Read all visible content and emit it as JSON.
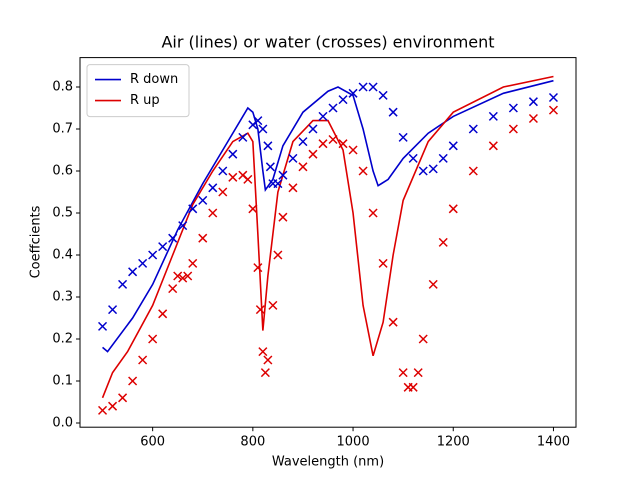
{
  "chart_data": {
    "type": "line",
    "title": "Air (lines) or water (crosses) environment",
    "x_label": "Wavelength (nm)",
    "y_label": "Coeffcients",
    "xlim": [
      455,
      1445
    ],
    "ylim": [
      -0.01,
      0.87
    ],
    "xticks": [
      600,
      800,
      1000,
      1200,
      1400
    ],
    "yticks": [
      {
        "value": 0,
        "label": "0.0"
      },
      0.1,
      0.2,
      0.3,
      0.4,
      0.5,
      0.6,
      0.7,
      0.8
    ],
    "legend": "upper left",
    "series": [
      {
        "name": "R down",
        "color": "#0000cc",
        "marker": "none",
        "x": [
          500,
          510,
          560,
          600,
          650,
          700,
          750,
          790,
          800,
          810,
          820,
          825,
          840,
          860,
          900,
          950,
          970,
          1000,
          1020,
          1040,
          1050,
          1070,
          1100,
          1150,
          1200,
          1300,
          1400
        ],
        "values": [
          0.18,
          0.17,
          0.25,
          0.33,
          0.46,
          0.57,
          0.67,
          0.75,
          0.74,
          0.7,
          0.6,
          0.555,
          0.58,
          0.66,
          0.74,
          0.79,
          0.8,
          0.78,
          0.7,
          0.6,
          0.565,
          0.58,
          0.63,
          0.69,
          0.73,
          0.785,
          0.815
        ]
      },
      {
        "name": "R up",
        "color": "#dd0000",
        "marker": "none",
        "x": [
          500,
          520,
          550,
          600,
          640,
          680,
          720,
          760,
          790,
          800,
          810,
          820,
          830,
          850,
          880,
          920,
          950,
          980,
          1000,
          1020,
          1040,
          1060,
          1080,
          1100,
          1150,
          1200,
          1300,
          1400
        ],
        "values": [
          0.06,
          0.12,
          0.17,
          0.28,
          0.4,
          0.52,
          0.6,
          0.67,
          0.69,
          0.67,
          0.45,
          0.22,
          0.35,
          0.55,
          0.67,
          0.72,
          0.72,
          0.65,
          0.5,
          0.28,
          0.16,
          0.24,
          0.4,
          0.53,
          0.67,
          0.74,
          0.8,
          0.825
        ]
      },
      {
        "color": "#0000cc",
        "marker": "x",
        "x": [
          500,
          520,
          540,
          560,
          580,
          600,
          620,
          640,
          660,
          680,
          700,
          720,
          740,
          760,
          780,
          800,
          810,
          820,
          830,
          835,
          840,
          850,
          860,
          880,
          900,
          920,
          940,
          960,
          980,
          1000,
          1020,
          1040,
          1060,
          1080,
          1100,
          1120,
          1140,
          1160,
          1180,
          1200,
          1240,
          1280,
          1320,
          1360,
          1400
        ],
        "values": [
          0.23,
          0.27,
          0.33,
          0.36,
          0.38,
          0.4,
          0.42,
          0.44,
          0.47,
          0.51,
          0.53,
          0.56,
          0.6,
          0.64,
          0.68,
          0.71,
          0.72,
          0.7,
          0.66,
          0.61,
          0.57,
          0.57,
          0.59,
          0.63,
          0.67,
          0.7,
          0.73,
          0.75,
          0.77,
          0.785,
          0.8,
          0.8,
          0.78,
          0.74,
          0.68,
          0.63,
          0.6,
          0.605,
          0.63,
          0.66,
          0.7,
          0.73,
          0.75,
          0.765,
          0.775
        ]
      },
      {
        "color": "#dd0000",
        "marker": "x",
        "x": [
          500,
          520,
          540,
          560,
          580,
          600,
          620,
          640,
          650,
          660,
          670,
          680,
          700,
          720,
          740,
          760,
          780,
          790,
          800,
          810,
          815,
          820,
          825,
          830,
          840,
          850,
          860,
          880,
          900,
          920,
          940,
          960,
          980,
          1000,
          1020,
          1040,
          1060,
          1080,
          1100,
          1110,
          1120,
          1130,
          1140,
          1160,
          1180,
          1200,
          1240,
          1280,
          1320,
          1360,
          1400
        ],
        "values": [
          0.03,
          0.04,
          0.06,
          0.1,
          0.15,
          0.2,
          0.26,
          0.32,
          0.35,
          0.345,
          0.35,
          0.38,
          0.44,
          0.5,
          0.55,
          0.585,
          0.59,
          0.58,
          0.51,
          0.37,
          0.27,
          0.17,
          0.12,
          0.15,
          0.28,
          0.4,
          0.49,
          0.56,
          0.61,
          0.64,
          0.665,
          0.675,
          0.665,
          0.65,
          0.6,
          0.5,
          0.38,
          0.24,
          0.12,
          0.085,
          0.085,
          0.12,
          0.2,
          0.33,
          0.43,
          0.51,
          0.6,
          0.66,
          0.7,
          0.725,
          0.745
        ]
      }
    ]
  }
}
